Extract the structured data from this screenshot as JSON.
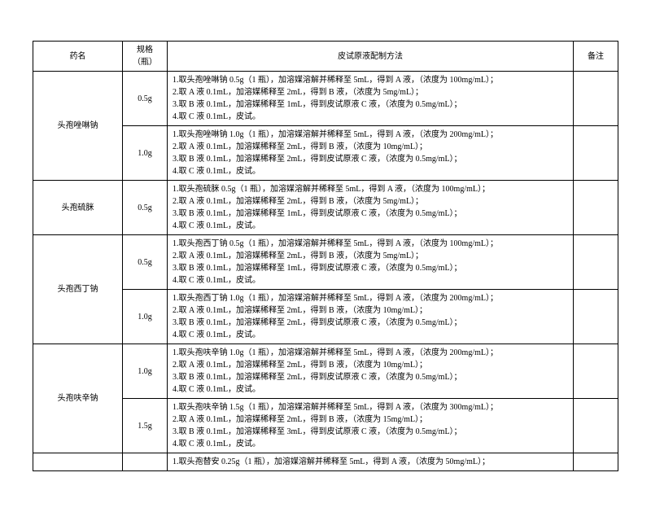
{
  "headers": {
    "name": "药名",
    "spec": "规格（瓶）",
    "method": "皮试原液配制方法",
    "note": "备注"
  },
  "rows": [
    {
      "name": "头孢唑啉钠",
      "span": 2,
      "subs": [
        {
          "spec": "0.5g",
          "method": "1.取头孢唑啉钠 0.5g（1 瓶），加溶媒溶解并稀释至 5mL，得到 A 液，（浓度为 100mg/mL）；\n2.取 A 液 0.1mL，加溶媒稀释至 2mL，得到 B 液，（浓度为 5mg/mL）；\n3.取 B 液 0.1mL，加溶媒稀释至 1mL，得到皮试原液 C 液，（浓度为 0.5mg/mL）；\n4.取 C 液 0.1mL，皮试。",
          "note": ""
        },
        {
          "spec": "1.0g",
          "method": "1.取头孢唑啉钠 1.0g（1 瓶），加溶媒溶解并稀释至 5mL，得到 A 液，（浓度为 200mg/mL）；\n2.取 A 液 0.1mL，加溶媒稀释至 2mL，得到 B 液，（浓度为 10mg/mL）；\n3.取 B 液 0.1mL，加溶媒稀释至 2mL，得到皮试原液 C 液，（浓度为 0.5mg/mL）；\n4.取 C 液 0.1mL，皮试。",
          "note": ""
        }
      ]
    },
    {
      "name": "头孢硫脒",
      "span": 1,
      "subs": [
        {
          "spec": "0.5g",
          "method": "1.取头孢硫脒 0.5g（1 瓶），加溶媒溶解并稀释至 5mL，得到 A 液，（浓度为 100mg/mL）；\n2.取 A 液 0.1mL，加溶媒稀释至 2mL，得到 B 液，（浓度为 5mg/mL）；\n3.取 B 液 0.1mL，加溶媒稀释至 1mL，得到皮试原液 C 液，（浓度为 0.5mg/mL）；\n4.取 C 液 0.1mL，皮试。",
          "note": ""
        }
      ]
    },
    {
      "name": "头孢西丁钠",
      "span": 2,
      "subs": [
        {
          "spec": "0.5g",
          "method": "1.取头孢西丁钠 0.5g（1 瓶），加溶媒溶解并稀释至 5mL，得到 A 液，（浓度为 100mg/mL）；\n2.取 A 液 0.1mL，加溶媒稀释至 2mL，得到 B 液，（浓度为 5mg/mL）；\n3.取 B 液 0.1mL，加溶媒稀释至 1mL，得到皮试原液 C 液，（浓度为 0.5mg/mL）；\n4.取 C 液 0.1mL，皮试。",
          "note": ""
        },
        {
          "spec": "1.0g",
          "method": "1.取头孢西丁钠 1.0g（1 瓶），加溶媒溶解并稀释至 5mL，得到 A 液，（浓度为 200mg/mL）；\n2.取 A 液 0.1mL，加溶媒稀释至 2mL，得到 B 液，（浓度为 10mg/mL）；\n3.取 B 液 0.1mL，加溶媒稀释至 2mL，得到皮试原液 C 液，（浓度为 0.5mg/mL）；\n4.取 C 液 0.1mL，皮试。",
          "note": ""
        }
      ]
    },
    {
      "name": "头孢呋辛钠",
      "span": 2,
      "subs": [
        {
          "spec": "1.0g",
          "method": "1.取头孢呋辛钠 1.0g（1 瓶），加溶媒溶解并稀释至 5mL，得到 A 液，（浓度为 200mg/mL）；\n2.取 A 液 0.1mL，加溶媒稀释至 2mL，得到 B 液，（浓度为 10mg/mL）；\n3.取 B 液 0.1mL，加溶媒稀释至 2mL，得到皮试原液 C 液，（浓度为 0.5mg/mL）；\n4.取 C 液 0.1mL，皮试。",
          "note": ""
        },
        {
          "spec": "1.5g",
          "method": "1.取头孢呋辛钠 1.5g（1 瓶），加溶媒溶解并稀释至 5mL，得到 A 液，（浓度为 300mg/mL）；\n2.取 A 液 0.1mL，加溶媒稀释至 2mL，得到 B 液，（浓度为 15mg/mL）；\n3.取 B 液 0.1mL，加溶媒稀释至 3mL，得到皮试原液 C 液，（浓度为 0.5mg/mL）；\n4.取 C 液 0.1mL，皮试。",
          "note": ""
        }
      ]
    }
  ],
  "partial": {
    "method": "1.取头孢替安 0.25g（1 瓶），加溶媒溶解并稀释至 5mL，得到 A 液，（浓度为 50mg/mL）；"
  }
}
